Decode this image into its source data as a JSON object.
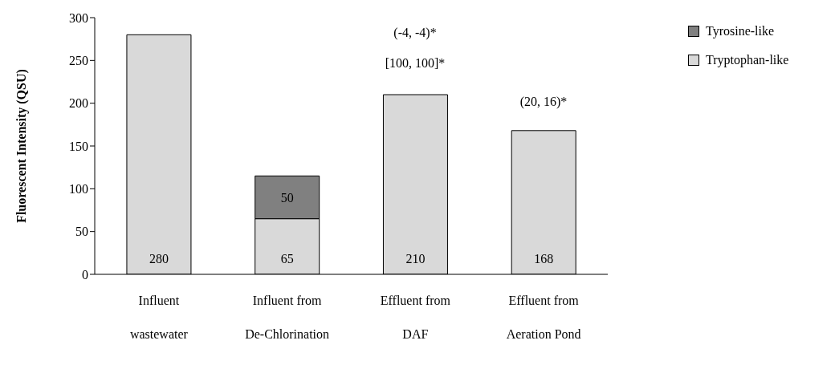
{
  "chart_data": {
    "type": "bar",
    "ylabel": "Fluorescent Intensity (QSU)",
    "categories": [
      "Influent wastewater",
      "Influent from De-Chlorination",
      "Effluent from DAF",
      "Effluent from Aeration Pond"
    ],
    "stacked": true,
    "series": [
      {
        "name": "Tryptophan-like",
        "color": "#d9d9d9",
        "values": [
          280,
          65,
          210,
          168
        ]
      },
      {
        "name": "Tyrosine-like",
        "color": "#808080",
        "values": [
          null,
          50,
          null,
          null
        ]
      }
    ],
    "ylim": [
      0,
      300
    ],
    "yticks": [
      0,
      50,
      100,
      150,
      200,
      250,
      300
    ],
    "grid": false,
    "legend": "top right",
    "data_labels": true,
    "annotations": [
      "(-4, -4)*",
      "[100, 100]*",
      "(20, 16)*"
    ]
  }
}
